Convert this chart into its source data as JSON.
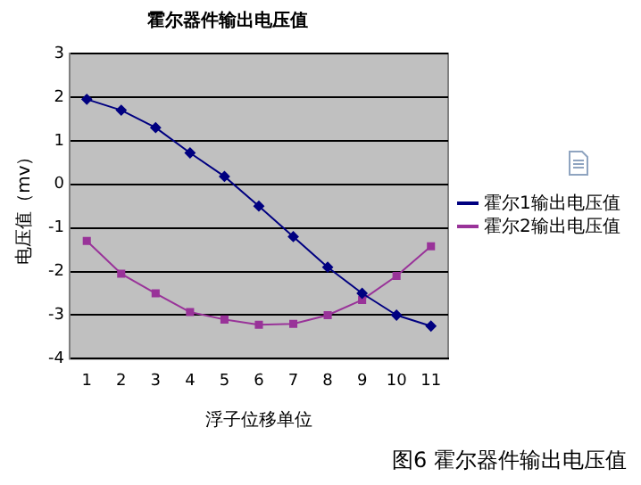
{
  "chart_data": {
    "type": "line",
    "title": "霍尔器件输出电压值",
    "xlabel": "浮子位移单位",
    "ylabel": "电压值（mv）",
    "categories": [
      "1",
      "2",
      "3",
      "4",
      "5",
      "6",
      "7",
      "8",
      "9",
      "10",
      "11"
    ],
    "series": [
      {
        "name": "霍尔1输出电压值",
        "color": "#000080",
        "marker": "diamond",
        "values": [
          1.95,
          1.7,
          1.3,
          0.72,
          0.18,
          -0.5,
          -1.2,
          -1.9,
          -2.5,
          -3.0,
          -3.25
        ]
      },
      {
        "name": "霍尔2输出电压值",
        "color": "#993399",
        "marker": "square",
        "values": [
          -1.3,
          -2.05,
          -2.5,
          -2.93,
          -3.1,
          -3.22,
          -3.2,
          -3.0,
          -2.65,
          -2.1,
          -1.42
        ]
      }
    ],
    "ylim": [
      -4,
      3
    ],
    "yticks": [
      -4,
      -3,
      -2,
      -1,
      0,
      1,
      2,
      3
    ],
    "grid": "y",
    "legend": "right",
    "line_style": "solid",
    "annotations": [
      "图6 霍尔器件输出电压值"
    ]
  }
}
